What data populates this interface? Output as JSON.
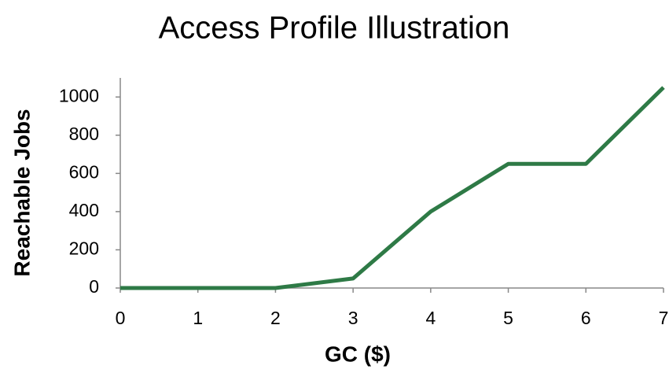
{
  "chart_data": {
    "type": "line",
    "title": "Access Profile Illustration",
    "x_label": "GC ($)",
    "y_label": "Reachable Jobs",
    "x": [
      0,
      1,
      2,
      3,
      4,
      5,
      6,
      7
    ],
    "series": [
      {
        "name": "Reachable Jobs",
        "color": "#2e7a46",
        "values": [
          0,
          0,
          0,
          50,
          400,
          650,
          650,
          1050
        ]
      }
    ],
    "xlim": [
      0,
      7
    ],
    "xticks": [
      0,
      1,
      2,
      3,
      4,
      5,
      6,
      7
    ],
    "ylim": [
      0,
      1100
    ],
    "yticks": [
      0,
      200,
      400,
      600,
      800,
      1000
    ],
    "grid": false
  }
}
